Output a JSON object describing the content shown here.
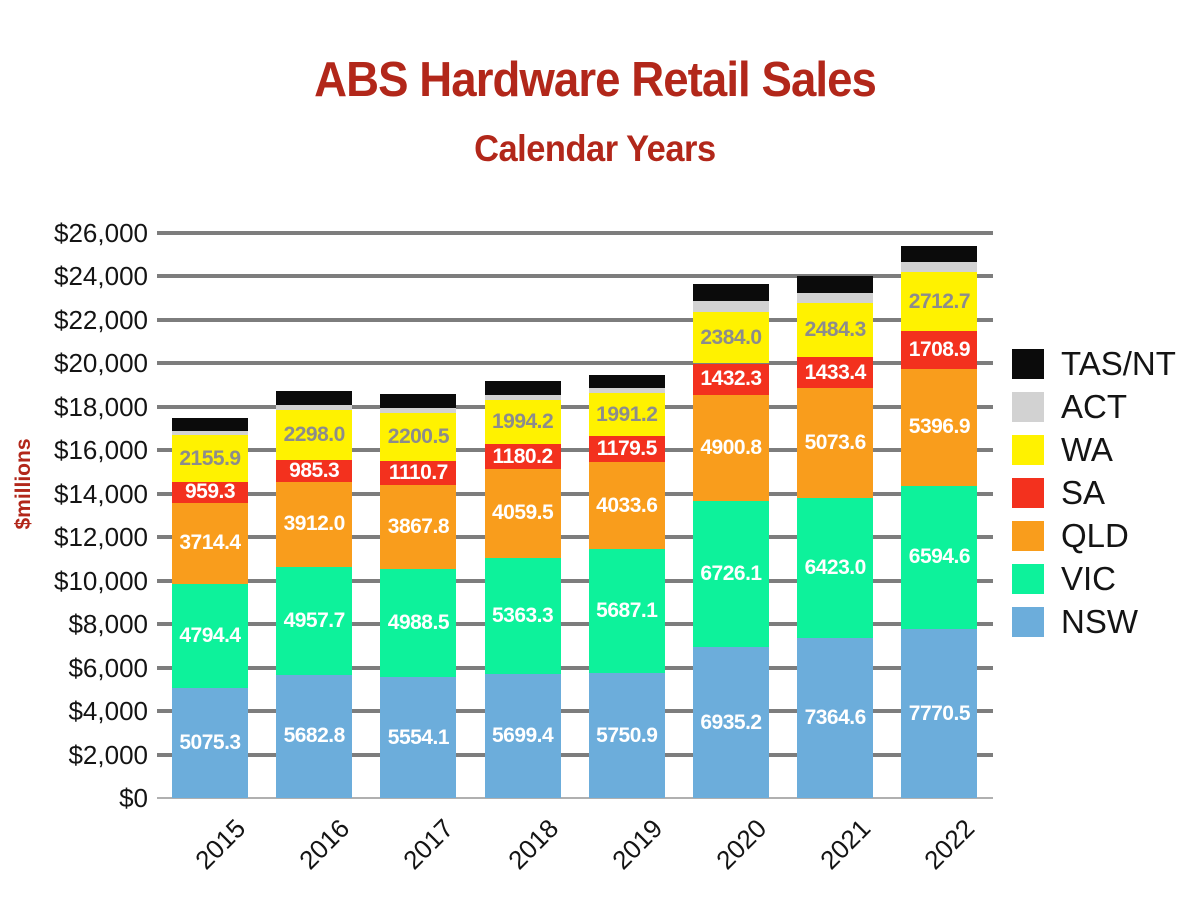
{
  "chart_data": {
    "type": "bar",
    "stacked": true,
    "title": "ABS Hardware Retail Sales",
    "subtitle": "Calendar Years",
    "title_color": "#B2271A",
    "ylabel": "$millions",
    "categories": [
      "2015",
      "2016",
      "2017",
      "2018",
      "2019",
      "2020",
      "2021",
      "2022"
    ],
    "series": [
      {
        "name": "NSW",
        "color": "#6CADDB",
        "label_color": "#FFFFFF",
        "value_labels_visible": true,
        "values": [
          5075.3,
          5682.8,
          5554.1,
          5699.4,
          5750.9,
          6935.2,
          7364.6,
          7770.5
        ]
      },
      {
        "name": "VIC",
        "color": "#0DF29B",
        "label_color": "#FFFFFF",
        "value_labels_visible": true,
        "values": [
          4794.4,
          4957.7,
          4988.5,
          5363.3,
          5687.1,
          6726.1,
          6423.0,
          6594.6
        ]
      },
      {
        "name": "QLD",
        "color": "#F99D1C",
        "label_color": "#FFFFFF",
        "value_labels_visible": true,
        "values": [
          3714.4,
          3912.0,
          3867.8,
          4059.5,
          4033.6,
          4900.8,
          5073.6,
          5396.9
        ]
      },
      {
        "name": "SA",
        "color": "#F3311E",
        "label_color": "#FFFFFF",
        "value_labels_visible": true,
        "values": [
          959.3,
          985.3,
          1110.7,
          1180.2,
          1179.5,
          1432.3,
          1433.4,
          1708.9
        ]
      },
      {
        "name": "WA",
        "color": "#FFF200",
        "label_color": "#8C8C8C",
        "value_labels_visible": true,
        "values": [
          2155.9,
          2298.0,
          2200.5,
          1994.2,
          1991.2,
          2384.0,
          2484.3,
          2712.7
        ]
      },
      {
        "name": "ACT",
        "color": "#D2D2D2",
        "label_color": "#FFFFFF",
        "value_labels_visible": false,
        "values_estimated": true,
        "values": [
          190,
          230,
          230,
          260,
          230,
          480,
          470,
          460
        ]
      },
      {
        "name": "TAS/NT",
        "color": "#0B0B0B",
        "label_color": "#FFFFFF",
        "value_labels_visible": false,
        "values_estimated": true,
        "values": [
          620,
          650,
          630,
          620,
          580,
          780,
          750,
          780
        ]
      }
    ],
    "legend": {
      "position": "right",
      "order_top_to_bottom": [
        "TAS/NT",
        "ACT",
        "WA",
        "SA",
        "QLD",
        "VIC",
        "NSW"
      ]
    },
    "axes": {
      "ylim": [
        0,
        26000
      ],
      "ytick_step": 2000,
      "ytick_labels": [
        "$0",
        "$2,000",
        "$4,000",
        "$6,000",
        "$8,000",
        "$10,000",
        "$12,000",
        "$14,000",
        "$16,000",
        "$18,000",
        "$20,000",
        "$22,000",
        "$24,000",
        "$26,000"
      ],
      "grid": true,
      "gridline_color": "#7D7D7D",
      "baseline_color": "#B0B0B0"
    }
  }
}
